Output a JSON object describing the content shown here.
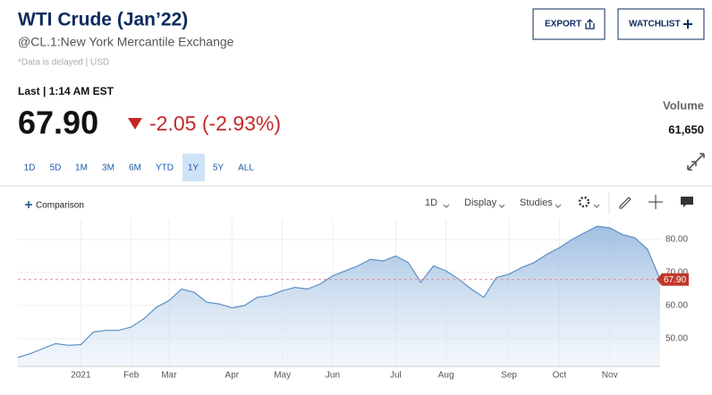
{
  "header": {
    "title": "WTI Crude (Jan’22)",
    "subtitle": "@CL.1:New York Mercantile Exchange",
    "note": "*Data is delayed | USD",
    "buttons": [
      "EXPORT",
      "WATCHLIST"
    ]
  },
  "quote": {
    "last": "Last | 1:14 AM EST",
    "price": "67.90",
    "change": "-2.05 (-2.93%)",
    "volume_label": "Volume",
    "volume": "61,650"
  },
  "ranges": {
    "items": [
      "1D",
      "5D",
      "1M",
      "3M",
      "6M",
      "YTD",
      "1Y",
      "5Y",
      "ALL"
    ],
    "selected": "1Y"
  },
  "toolbar": {
    "comparison": "Comparison",
    "interval": "1D",
    "display": "Display",
    "studies": "Studies"
  },
  "chart_data": {
    "type": "area",
    "categories": [
      null,
      null,
      null,
      null,
      null,
      "2021",
      null,
      null,
      null,
      "Feb",
      null,
      null,
      "Mar",
      null,
      null,
      null,
      null,
      "Apr",
      null,
      null,
      null,
      "May",
      null,
      null,
      null,
      "Jun",
      null,
      null,
      null,
      null,
      "Jul",
      null,
      null,
      null,
      "Aug",
      null,
      null,
      null,
      null,
      "Sep",
      null,
      null,
      null,
      "Oct",
      null,
      null,
      null,
      "Nov",
      null,
      null,
      null,
      null
    ],
    "series": [
      {
        "name": "WTI Crude",
        "color": "#5b8fc7",
        "values": [
          44.3,
          45.5,
          47,
          48.5,
          48,
          48.2,
          52,
          52.5,
          52.5,
          53.5,
          56,
          59.5,
          61.5,
          65,
          64,
          61,
          60.5,
          59.3,
          60,
          62.5,
          63,
          64.5,
          65.5,
          65,
          66.5,
          69,
          70.5,
          72,
          74,
          73.5,
          75,
          73,
          67,
          72,
          70.5,
          68,
          65,
          62.5,
          68.5,
          69.5,
          71.5,
          73,
          75.5,
          77.5,
          80,
          82,
          84,
          83.5,
          81.5,
          80.5,
          77,
          67.9
        ]
      }
    ],
    "ylim": [
      41.6,
      86.2
    ],
    "yticks": [
      {
        "value": 50,
        "label": "50.00"
      },
      {
        "value": 60,
        "label": "60.00"
      },
      {
        "value": 70,
        "label": "70.00"
      },
      {
        "value": 80,
        "label": "80.00"
      }
    ],
    "reference_line": {
      "value": 67.9,
      "label": "67.90"
    },
    "grid": true
  }
}
